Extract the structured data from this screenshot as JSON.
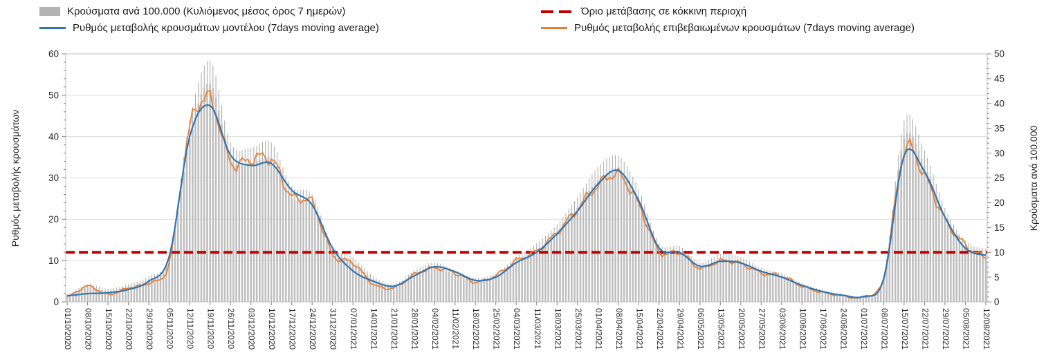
{
  "legend": {
    "items": [
      {
        "id": "cases-bars",
        "label": "Κρούσματα ανά 100.000 (Κυλιόμενος μέσος όρος 7 ημερών)",
        "swatch": "bar",
        "color": "#b3b3b3"
      },
      {
        "id": "red-threshold",
        "label": "Όριο μετάβασης σε κόκκινη περιοχή",
        "swatch": "dashed-line",
        "color": "#c00000"
      },
      {
        "id": "model-rate",
        "label": "Ρυθμός μεταβολής κρουσμάτων μοντέλου (7days moving average)",
        "swatch": "line",
        "color": "#2e75b6"
      },
      {
        "id": "confirmed-rate",
        "label": "Ρυθμός μεταβολής επιβεβαιωμένων κρουσμάτων (7days moving average)",
        "swatch": "line",
        "color": "#ed7d31"
      }
    ]
  },
  "chart_data": {
    "type": "combo bar+line, dual y-axis",
    "grid": "horizontal",
    "legend_position": "top",
    "x_tick_labels": [
      "01/10/2020",
      "08/10/2020",
      "15/10/2020",
      "22/10/2020",
      "29/10/2020",
      "05/11/2020",
      "12/11/2020",
      "19/11/2020",
      "26/11/2020",
      "03/12/2020",
      "10/12/2020",
      "17/12/2020",
      "24/12/2020",
      "31/12/2020",
      "07/01/2021",
      "14/01/2021",
      "21/01/2021",
      "28/01/2021",
      "04/02/2021",
      "11/02/2021",
      "18/02/2021",
      "25/02/2021",
      "04/03/2021",
      "11/03/2021",
      "18/03/2021",
      "25/03/2021",
      "01/04/2021",
      "08/04/2021",
      "15/04/2021",
      "22/04/2021",
      "29/04/2021",
      "06/05/2021",
      "13/05/2021",
      "20/05/2021",
      "27/05/2021",
      "03/06/2021",
      "10/06/2021",
      "17/06/2021",
      "24/06/2021",
      "01/07/2021",
      "08/07/2021",
      "15/07/2021",
      "22/07/2021",
      "29/07/2021",
      "05/08/2021",
      "12/08/2021"
    ],
    "left_axis": {
      "label": "Ρυθμός μεταβολής κρουσμάτων",
      "min": 0,
      "max": 60,
      "ticks": [
        0,
        10,
        20,
        30,
        40,
        50,
        60
      ]
    },
    "right_axis": {
      "label": "Κρούσματα ανά 100.000",
      "min": 0,
      "max": 50,
      "ticks": [
        0,
        5,
        10,
        15,
        20,
        25,
        30,
        35,
        40,
        45,
        50
      ]
    },
    "threshold": {
      "label": "Όριο μετάβασης σε κόκκινη περιοχή",
      "value_left_axis": 12,
      "value_right_axis": 10,
      "color": "#c00000",
      "style": "dashed"
    },
    "series": [
      {
        "name": "Κρούσματα ανά 100.000 (Κυλιόμενος μέσος όρος 7 ημερών)",
        "type": "bar",
        "axis": "right",
        "color": "#bfbfbf",
        "whisker_color": "#a6a6a6",
        "values_at_ticks": [
          1.2,
          3.0,
          2.2,
          3.0,
          4.5,
          8.5,
          33,
          44,
          29,
          28,
          29,
          21,
          19.5,
          10,
          8,
          4.5,
          3.0,
          5.5,
          7.0,
          5.5,
          4.2,
          5.0,
          8.0,
          10.5,
          14,
          19,
          24.5,
          26.5,
          20.5,
          10.5,
          10,
          7.0,
          8.5,
          8.0,
          6.0,
          5.0,
          3.2,
          2.0,
          1.2,
          1.0,
          4.5,
          33,
          27.5,
          17,
          11,
          9.5
        ]
      },
      {
        "name": "Ρυθμός μεταβολής κρουσμάτων μοντέλου (7days moving average)",
        "type": "line",
        "axis": "left",
        "color": "#2e75b6",
        "values_at_ticks": [
          1.5,
          2.0,
          2.2,
          3.0,
          5.0,
          11,
          40,
          47.5,
          35.5,
          33,
          33.5,
          27,
          23.5,
          13,
          7.5,
          5.0,
          3.8,
          6.3,
          8.5,
          7.3,
          5.2,
          6.0,
          9.5,
          12,
          16.5,
          22,
          28.5,
          31.8,
          24.5,
          13,
          12,
          8.6,
          9.8,
          9.4,
          7.4,
          6.0,
          4.0,
          2.5,
          1.6,
          1.3,
          5.5,
          35.5,
          31.5,
          20.5,
          13,
          11.3
        ]
      },
      {
        "name": "Ρυθμός μεταβολής επιβεβαιωμένων κρουσμάτων (7days moving average)",
        "type": "line",
        "axis": "left",
        "color": "#ed7d31",
        "values_at_ticks": [
          1.2,
          3.8,
          1.8,
          3.4,
          4.6,
          9.5,
          42,
          49,
          34,
          34.5,
          34.5,
          25.5,
          24,
          11.5,
          9.5,
          4.3,
          3.4,
          6.6,
          8.2,
          7.0,
          4.8,
          6.4,
          10,
          12.3,
          16.8,
          22.5,
          28.2,
          30.8,
          23.5,
          12.2,
          12,
          8.2,
          9.9,
          9.3,
          7.0,
          6.3,
          3.8,
          2.3,
          1.5,
          1.2,
          6.0,
          36.5,
          30.5,
          20,
          13.8,
          10.8
        ]
      }
    ]
  }
}
